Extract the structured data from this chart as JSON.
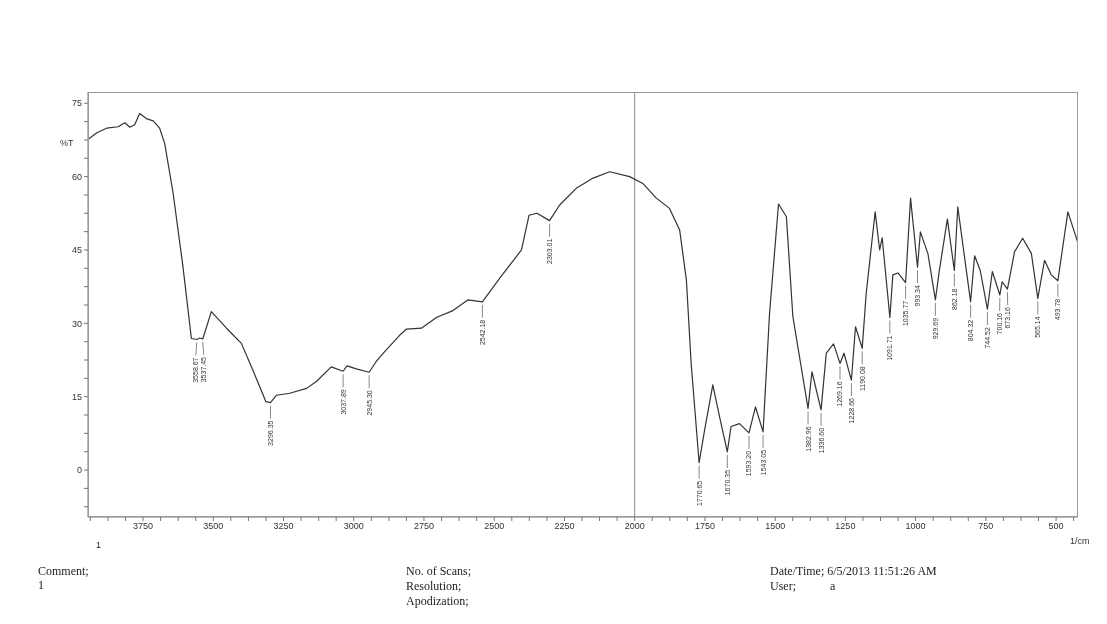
{
  "chart_data": {
    "type": "line",
    "xlabel": "1/cm",
    "ylabel": "%T",
    "xlim": [
      3946,
      422
    ],
    "ylim": [
      -9.6,
      77.3
    ],
    "xticks": [
      {
        "value": 3937.5,
        "label": null
      },
      {
        "value": 3875,
        "label": null
      },
      {
        "value": 3812.5,
        "label": null
      },
      3750,
      {
        "value": 3687.5,
        "label": null
      },
      {
        "value": 3625,
        "label": null
      },
      {
        "value": 3562.5,
        "label": null
      },
      3500,
      {
        "value": 3437.5,
        "label": null
      },
      {
        "value": 3375,
        "label": null
      },
      {
        "value": 3312.5,
        "label": null
      },
      3250,
      {
        "value": 3187.5,
        "label": null
      },
      {
        "value": 3125,
        "label": null
      },
      {
        "value": 3062.5,
        "label": null
      },
      3000,
      {
        "value": 2937.5,
        "label": null
      },
      {
        "value": 2875,
        "label": null
      },
      {
        "value": 2812.5,
        "label": null
      },
      2750,
      {
        "value": 2687.5,
        "label": null
      },
      {
        "value": 2625,
        "label": null
      },
      {
        "value": 2562.5,
        "label": null
      },
      2500,
      {
        "value": 2437.5,
        "label": null
      },
      {
        "value": 2375,
        "label": null
      },
      {
        "value": 2312.5,
        "label": null
      },
      2250,
      {
        "value": 2187.5,
        "label": null
      },
      {
        "value": 2125,
        "label": null
      },
      {
        "value": 2062.5,
        "label": null
      },
      2000,
      {
        "value": 1937.5,
        "label": null
      },
      {
        "value": 1875,
        "label": null
      },
      {
        "value": 1812.5,
        "label": null
      },
      1750,
      {
        "value": 1687.5,
        "label": null
      },
      {
        "value": 1625,
        "label": null
      },
      {
        "value": 1562.5,
        "label": null
      },
      1500,
      {
        "value": 1437.5,
        "label": null
      },
      {
        "value": 1375,
        "label": null
      },
      {
        "value": 1312.5,
        "label": null
      },
      1250,
      {
        "value": 1187.5,
        "label": null
      },
      {
        "value": 1125,
        "label": null
      },
      {
        "value": 1062.5,
        "label": null
      },
      1000,
      {
        "value": 937.5,
        "label": null
      },
      {
        "value": 875,
        "label": null
      },
      {
        "value": 812.5,
        "label": null
      },
      750,
      {
        "value": 687.5,
        "label": null
      },
      {
        "value": 625,
        "label": null
      },
      {
        "value": 562.5,
        "label": null
      },
      500,
      {
        "value": 437.5,
        "label": null
      }
    ],
    "yticks": [
      {
        "value": -7.5,
        "label": null
      },
      {
        "value": -3.75,
        "label": null
      },
      0,
      {
        "value": 3.75,
        "label": null
      },
      {
        "value": 7.5,
        "label": null
      },
      {
        "value": 11.25,
        "label": null
      },
      15,
      {
        "value": 18.75,
        "label": null
      },
      {
        "value": 22.5,
        "label": null
      },
      {
        "value": 26.25,
        "label": null
      },
      30,
      {
        "value": 33.75,
        "label": null
      },
      {
        "value": 37.5,
        "label": null
      },
      {
        "value": 41.25,
        "label": null
      },
      45,
      {
        "value": 48.75,
        "label": null
      },
      {
        "value": 52.5,
        "label": null
      },
      {
        "value": 56.25,
        "label": null
      },
      60,
      {
        "value": 63.75,
        "label": null
      },
      {
        "value": 67.5,
        "label": null
      },
      {
        "value": 71.25,
        "label": null
      },
      75
    ],
    "marker": "none",
    "line_style": "solid",
    "x": [
      3946,
      3916,
      3880,
      3839,
      3815,
      3797,
      3780,
      3762,
      3736,
      3714,
      3691,
      3673,
      3643,
      3608,
      3578,
      3558.67,
      3548,
      3537.45,
      3507,
      3453,
      3400,
      3359,
      3313,
      3296.35,
      3275,
      3228,
      3168,
      3133,
      3080,
      3037.89,
      3024,
      2991,
      2945.3,
      2920,
      2890,
      2836,
      2813,
      2759,
      2706,
      2647,
      2593,
      2542.18,
      2481,
      2403,
      2376,
      2348,
      2303.01,
      2267,
      2208,
      2148,
      2089,
      2018,
      1971,
      1923,
      1876,
      1840,
      1816,
      1799,
      1770.65,
      1751,
      1722,
      1698,
      1670.35,
      1657,
      1627,
      1593.2,
      1570,
      1543.05,
      1520,
      1488,
      1460,
      1437,
      1382.96,
      1369,
      1336.6,
      1318,
      1292,
      1269.16,
      1255,
      1228.66,
      1214,
      1190.08,
      1176,
      1144,
      1128,
      1119,
      1091.71,
      1081,
      1063,
      1035.77,
      1018,
      993.34,
      983,
      956,
      929.69,
      915,
      887,
      862.18,
      850,
      804.32,
      790,
      770,
      744.52,
      727,
      700.16,
      692,
      673.16,
      648,
      619,
      588,
      565.14,
      541,
      517,
      493.78,
      458,
      422
    ],
    "series": [
      {
        "color": "#333333",
        "values": [
          67.6,
          68.9,
          69.9,
          70.2,
          71.0,
          70.1,
          70.6,
          72.9,
          71.8,
          71.4,
          69.9,
          66.8,
          56.6,
          41.6,
          26.9,
          26.7,
          27.0,
          26.8,
          32.4,
          29.0,
          25.9,
          20.4,
          14.0,
          13.8,
          15.3,
          15.7,
          16.7,
          18.1,
          21.1,
          20.2,
          21.3,
          20.7,
          20.0,
          22.2,
          24.2,
          27.6,
          28.8,
          29.0,
          31.2,
          32.6,
          34.8,
          34.4,
          39.2,
          45.0,
          52.1,
          52.5,
          51.0,
          54.2,
          57.6,
          59.7,
          61.0,
          60.0,
          58.6,
          55.6,
          53.5,
          49.1,
          38.9,
          21.8,
          1.5,
          8.2,
          17.4,
          10.9,
          3.7,
          8.9,
          9.5,
          7.6,
          12.9,
          7.8,
          32.0,
          54.4,
          51.8,
          31.4,
          12.6,
          20.1,
          12.3,
          23.9,
          25.8,
          21.8,
          23.9,
          18.4,
          29.3,
          24.9,
          36.1,
          52.8,
          45.0,
          47.5,
          31.2,
          39.9,
          40.3,
          38.3,
          55.6,
          41.5,
          48.7,
          44.2,
          34.8,
          41.0,
          51.3,
          40.8,
          53.8,
          34.4,
          43.8,
          40.8,
          32.9,
          40.6,
          35.8,
          38.5,
          37.0,
          44.6,
          47.4,
          44.3,
          35.1,
          42.9,
          39.9,
          38.7,
          52.8,
          46.4
        ]
      }
    ],
    "ref_lines": [
      {
        "axis": "x",
        "value": 2000,
        "color": "#888888"
      }
    ],
    "annotations": [
      {
        "text": "3558.67",
        "x": 3558.67,
        "y": 26.7
      },
      {
        "text": "3537.45",
        "x": 3537.45,
        "y": 26.8
      },
      {
        "text": "3296.35",
        "x": 3296.35,
        "y": 13.8
      },
      {
        "text": "3037.89",
        "x": 3037.89,
        "y": 20.2
      },
      {
        "text": "2945.30",
        "x": 2945.3,
        "y": 20.0
      },
      {
        "text": "2542.18",
        "x": 2542.18,
        "y": 34.4
      },
      {
        "text": "2303.01",
        "x": 2303.01,
        "y": 51.0
      },
      {
        "text": "1770.65",
        "x": 1770.65,
        "y": 1.5
      },
      {
        "text": "1670.35",
        "x": 1670.35,
        "y": 3.7
      },
      {
        "text": "1593.20",
        "x": 1593.2,
        "y": 7.6
      },
      {
        "text": "1543.05",
        "x": 1543.05,
        "y": 7.8
      },
      {
        "text": "1382.96",
        "x": 1382.96,
        "y": 12.6
      },
      {
        "text": "1336.60",
        "x": 1336.6,
        "y": 12.3
      },
      {
        "text": "1269.16",
        "x": 1269.16,
        "y": 21.8
      },
      {
        "text": "1228.66",
        "x": 1228.66,
        "y": 18.4
      },
      {
        "text": "1190.08",
        "x": 1190.08,
        "y": 24.9
      },
      {
        "text": "1091.71",
        "x": 1091.71,
        "y": 31.2
      },
      {
        "text": "1035.77",
        "x": 1035.77,
        "y": 38.3
      },
      {
        "text": "993.34",
        "x": 993.34,
        "y": 41.5
      },
      {
        "text": "929.69",
        "x": 929.69,
        "y": 34.8
      },
      {
        "text": "862.18",
        "x": 862.18,
        "y": 40.8
      },
      {
        "text": "804.32",
        "x": 804.32,
        "y": 34.4
      },
      {
        "text": "744.52",
        "x": 744.52,
        "y": 32.9
      },
      {
        "text": "700.16",
        "x": 700.16,
        "y": 35.8
      },
      {
        "text": "673.16",
        "x": 673.16,
        "y": 37.0
      },
      {
        "text": "565.14",
        "x": 565.14,
        "y": 35.1
      },
      {
        "text": "493.78",
        "x": 493.78,
        "y": 38.7
      },
      "1",
      "Comment;",
      "1",
      "No. of Scans;",
      "Resolution;",
      "Apodization;",
      "Date/Time; 6/5/2013 11:51:26 AM",
      "User;",
      "a"
    ]
  }
}
